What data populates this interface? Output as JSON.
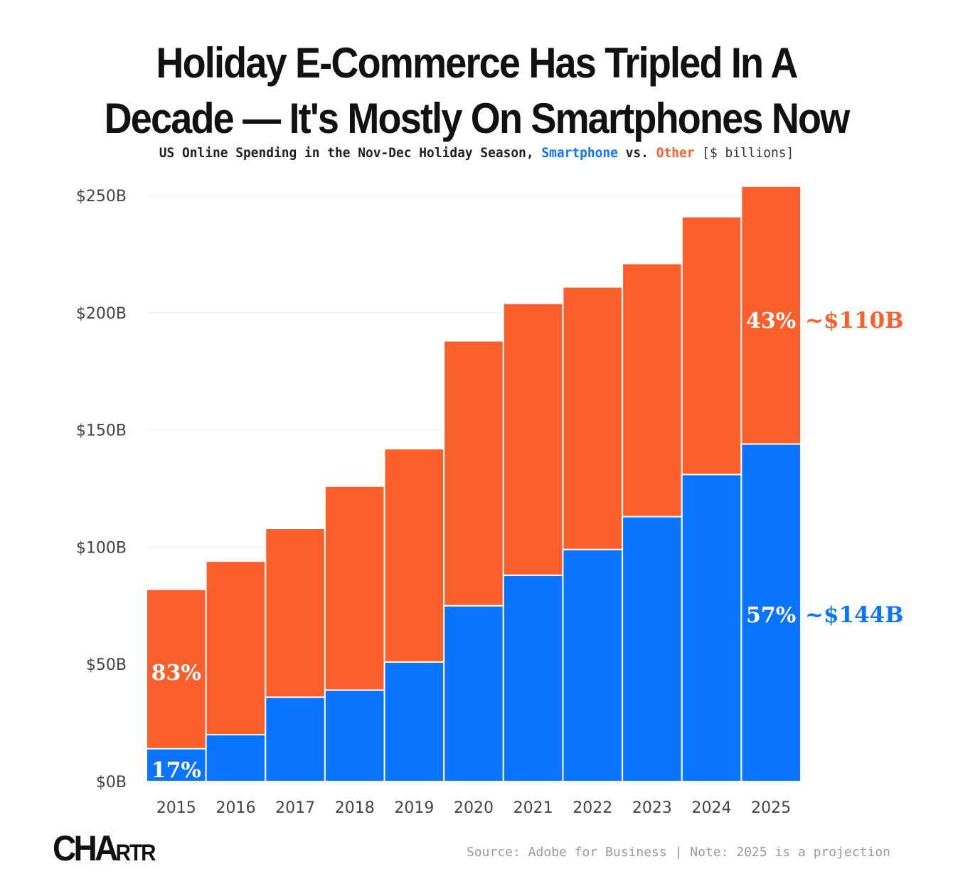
{
  "title": "Holiday E-Commerce Has Tripled In A Decade — It's Mostly On Smartphones Now",
  "subtitle": {
    "prefix": "US Online Spending in the Nov-Dec Holiday Season,",
    "smartphone": "Smartphone",
    "vs": "vs.",
    "other": "Other",
    "units": "[$ billions]"
  },
  "colors": {
    "smartphone": "#0a74ff",
    "other": "#fb5f2b",
    "grid": "#eeeeee",
    "axis_text": "#444444"
  },
  "chart_data": {
    "type": "bar",
    "stacked": true,
    "title": "Holiday E-Commerce Has Tripled In A Decade — It's Mostly On Smartphones Now",
    "ylim": [
      0,
      250
    ],
    "yticks": [
      0,
      50,
      100,
      150,
      200,
      250
    ],
    "ytick_labels": [
      "$0B",
      "$50B",
      "$100B",
      "$150B",
      "$200B",
      "$250B"
    ],
    "categories": [
      "2015",
      "2016",
      "2017",
      "2018",
      "2019",
      "2020",
      "2021",
      "2022",
      "2023",
      "2024",
      "2025"
    ],
    "series": [
      {
        "name": "Smartphone",
        "color": "#0a74ff",
        "values": [
          14,
          20,
          36,
          39,
          51,
          75,
          88,
          99,
          113,
          131,
          144
        ]
      },
      {
        "name": "Other",
        "color": "#fb5f2b",
        "values": [
          68,
          74,
          72,
          87,
          91,
          113,
          116,
          112,
          108,
          110,
          110
        ]
      }
    ],
    "annotations": [
      {
        "category": "2015",
        "series": "Other",
        "text": "83%"
      },
      {
        "category": "2015",
        "series": "Smartphone",
        "text": "17%"
      },
      {
        "category": "2025",
        "series": "Other",
        "text": "43%"
      },
      {
        "category": "2025",
        "series": "Smartphone",
        "text": "57%"
      }
    ],
    "end_labels": [
      {
        "series": "Other",
        "text": "~$110B"
      },
      {
        "series": "Smartphone",
        "text": "~$144B"
      }
    ]
  },
  "footer": {
    "logo": "CHARTR",
    "source": "Source: Adobe for Business | Note: 2025 is a projection"
  }
}
